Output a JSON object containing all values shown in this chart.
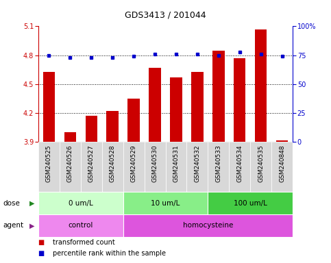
{
  "title": "GDS3413 / 201044",
  "samples": [
    "GSM240525",
    "GSM240526",
    "GSM240527",
    "GSM240528",
    "GSM240529",
    "GSM240530",
    "GSM240531",
    "GSM240532",
    "GSM240533",
    "GSM240534",
    "GSM240535",
    "GSM240848"
  ],
  "bar_values": [
    4.63,
    4.0,
    4.17,
    4.22,
    4.35,
    4.67,
    4.57,
    4.63,
    4.85,
    4.77,
    5.07,
    3.92
  ],
  "dot_values": [
    75,
    73,
    73,
    73,
    74,
    76,
    76,
    76,
    75,
    78,
    76,
    74
  ],
  "bar_color": "#cc0000",
  "dot_color": "#0000cc",
  "ylim_left": [
    3.9,
    5.1
  ],
  "ylim_right": [
    0,
    100
  ],
  "yticks_left": [
    3.9,
    4.2,
    4.5,
    4.8,
    5.1
  ],
  "yticks_right": [
    0,
    25,
    50,
    75,
    100
  ],
  "hlines": [
    4.2,
    4.5,
    4.8
  ],
  "dose_groups": [
    {
      "label": "0 um/L",
      "start": 0,
      "end": 4,
      "color": "#ccffcc"
    },
    {
      "label": "10 um/L",
      "start": 4,
      "end": 8,
      "color": "#88ee88"
    },
    {
      "label": "100 um/L",
      "start": 8,
      "end": 12,
      "color": "#44cc44"
    }
  ],
  "agent_groups": [
    {
      "label": "control",
      "start": 0,
      "end": 4,
      "color": "#ee88ee"
    },
    {
      "label": "homocysteine",
      "start": 4,
      "end": 12,
      "color": "#dd55dd"
    }
  ],
  "legend_items": [
    {
      "label": "transformed count",
      "color": "#cc0000"
    },
    {
      "label": "percentile rank within the sample",
      "color": "#0000cc"
    }
  ],
  "label_fontsize": 7.5,
  "tick_fontsize": 7,
  "title_fontsize": 9,
  "bar_width": 0.55,
  "xticklabel_bg": "#d8d8d8",
  "xticklabel_fontsize": 6.5
}
